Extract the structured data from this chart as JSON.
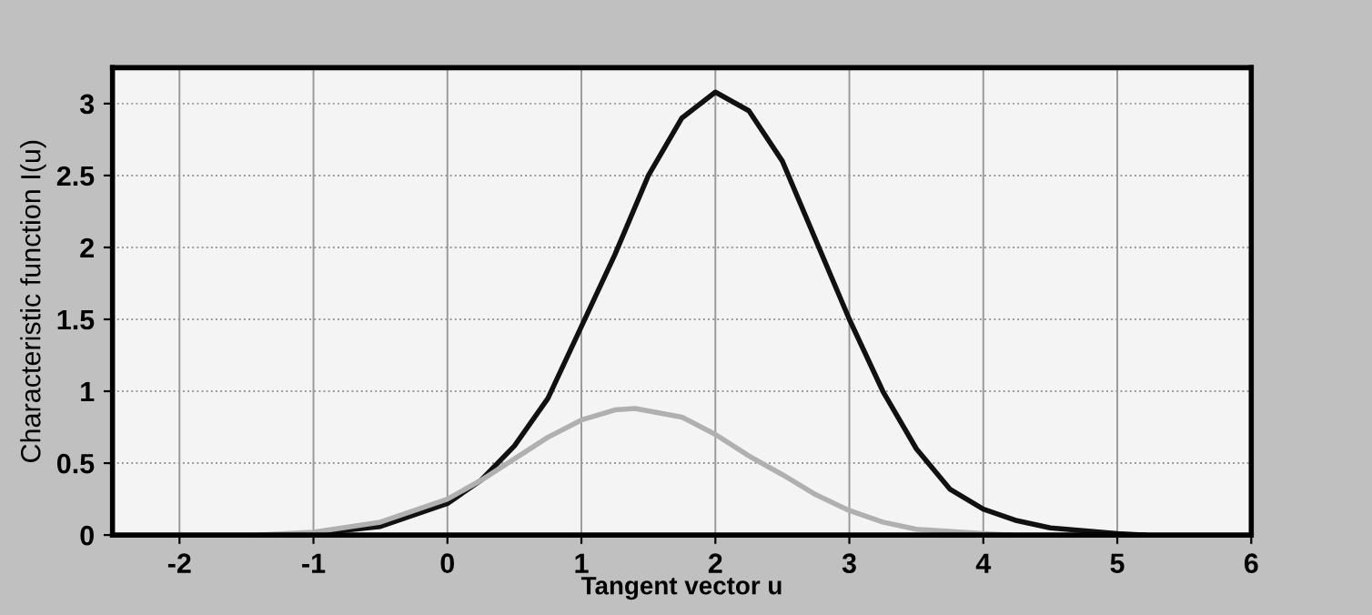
{
  "chart_data": {
    "type": "line",
    "xlabel": "Tangent vector u",
    "ylabel": "Characteristic function I(u)",
    "xlim": [
      -2.5,
      6
    ],
    "ylim": [
      0,
      3.25
    ],
    "xticks": [
      -2,
      -1,
      0,
      1,
      2,
      3,
      4,
      5,
      6
    ],
    "yticks": [
      0,
      0.5,
      1,
      1.5,
      2,
      2.5,
      3
    ],
    "grid": true,
    "marker": "none",
    "line_style": "solid",
    "series": [
      {
        "color": "#111111",
        "x": [
          -1.2,
          -1,
          -0.5,
          0,
          0.25,
          0.5,
          0.75,
          1,
          1.25,
          1.5,
          1.75,
          2,
          2.25,
          2.5,
          2.75,
          3,
          3.25,
          3.5,
          3.75,
          4,
          4.25,
          4.5,
          5,
          5.2
        ],
        "values": [
          0,
          0.01,
          0.06,
          0.22,
          0.38,
          0.62,
          0.95,
          1.45,
          1.95,
          2.5,
          2.9,
          3.08,
          2.95,
          2.6,
          2.05,
          1.5,
          1.0,
          0.6,
          0.32,
          0.18,
          0.1,
          0.05,
          0.01,
          0
        ]
      },
      {
        "color": "#b0b0b0",
        "x": [
          -1.4,
          -1,
          -0.5,
          0,
          0.25,
          0.5,
          0.75,
          1,
          1.25,
          1.4,
          1.75,
          2,
          2.25,
          2.5,
          2.75,
          3,
          3.25,
          3.5,
          4,
          4.2
        ],
        "values": [
          0,
          0.02,
          0.09,
          0.25,
          0.38,
          0.53,
          0.68,
          0.8,
          0.87,
          0.88,
          0.82,
          0.7,
          0.55,
          0.42,
          0.28,
          0.17,
          0.09,
          0.04,
          0.01,
          0
        ]
      }
    ]
  }
}
